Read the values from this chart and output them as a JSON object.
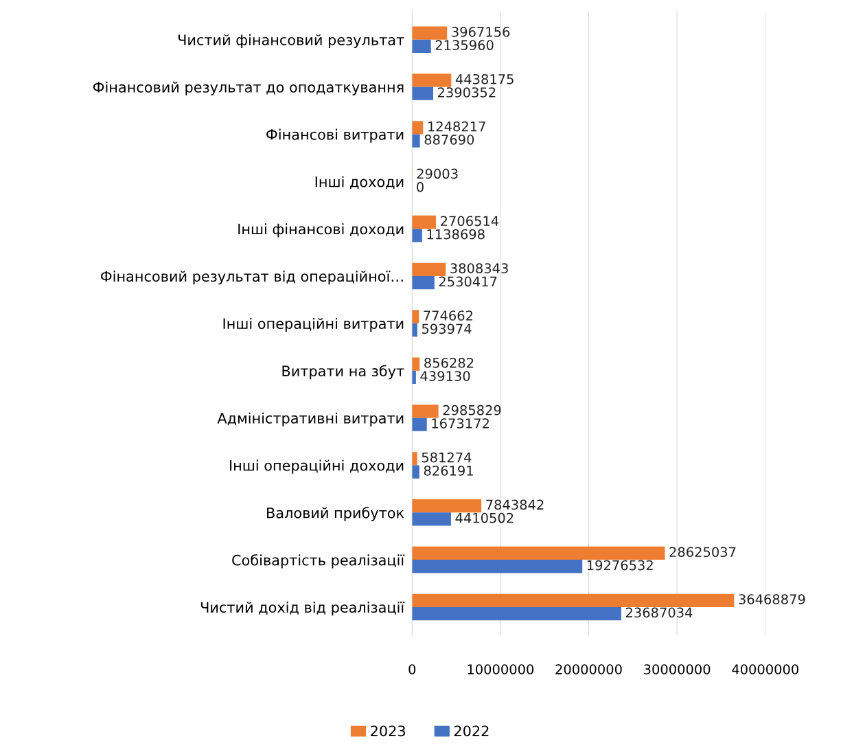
{
  "chart_data": {
    "type": "bar",
    "orientation": "horizontal",
    "categories": [
      "Чистий фінансовий результат",
      "Фінансовий результат до оподаткування",
      "Фінансові витрати",
      "Інші доходи",
      "Інші фінансові доходи",
      "Фінансовий результат від операційної…",
      "Інші операційні витрати",
      "Витрати на збут",
      "Адміністративні витрати",
      "Інші операційні доходи",
      "Валовий прибуток",
      "Собівартість реалізації",
      "Чистий дохід від реалізації"
    ],
    "series": [
      {
        "name": "2023",
        "color": "#ed7d31",
        "values": [
          3967156,
          4438175,
          1248217,
          29003,
          2706514,
          3808343,
          774662,
          856282,
          2985829,
          581274,
          7843842,
          28625037,
          36468879
        ]
      },
      {
        "name": "2022",
        "color": "#4472c4",
        "values": [
          2135960,
          2390352,
          887690,
          0,
          1138698,
          2530417,
          593974,
          439130,
          1673172,
          826191,
          4410502,
          19276532,
          23687034
        ]
      }
    ],
    "xlim": [
      0,
      40000000
    ],
    "xticks": [
      0,
      10000000,
      20000000,
      30000000,
      40000000
    ],
    "grid": "x",
    "legend": "bottom",
    "data_labels": true
  }
}
